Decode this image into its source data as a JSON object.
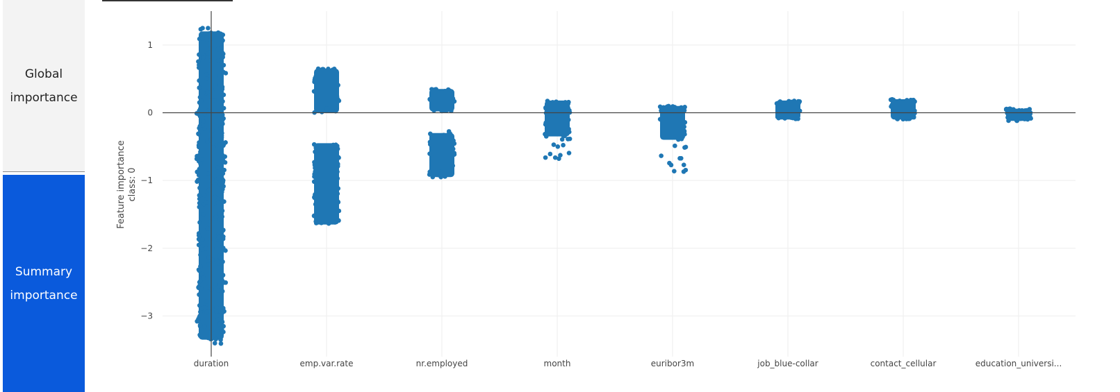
{
  "nav": {
    "tabs": [
      {
        "label": "Global importance",
        "selected": false
      },
      {
        "label": "Summary importance",
        "selected": true
      }
    ]
  },
  "colors": {
    "point": "#1f77b4",
    "grid": "#eeeeee",
    "zeroline": "#444444",
    "tab_selected": "#0a5adc",
    "tab_unselected": "#f3f3f3"
  },
  "chart_data": {
    "type": "scatter",
    "title": "",
    "xlabel": "",
    "ylabel": "Feature importance",
    "ylabel2": "class:  0",
    "ylim": [
      -3.6,
      1.5
    ],
    "yticks": [
      1,
      0,
      -1,
      -2,
      -3
    ],
    "ytick_labels": [
      "1",
      "0",
      "−1",
      "−2",
      "−3"
    ],
    "grid": true,
    "categories": [
      "duration",
      "emp.var.rate",
      "nr.employed",
      "month",
      "euribor3m",
      "job_blue-collar",
      "contact_cellular",
      "education_universi..."
    ],
    "clusters": [
      {
        "feature": "duration",
        "dense_range": [
          -3.35,
          1.2
        ],
        "sparse_outliers": [
          1.25,
          -3.38,
          -2.9,
          -2.2,
          -1.85
        ]
      },
      {
        "feature": "emp.var.rate",
        "dense_range": [
          0.0,
          0.65
        ],
        "dense_range_2": [
          -1.65,
          -0.45
        ],
        "sparse_outliers": [
          0.05,
          -1.62
        ]
      },
      {
        "feature": "nr.employed",
        "dense_range": [
          0.02,
          0.35
        ],
        "dense_range_2": [
          -0.95,
          -0.3
        ],
        "sparse_outliers": [
          -0.3,
          -0.9
        ]
      },
      {
        "feature": "month",
        "dense_range": [
          -0.35,
          0.18
        ],
        "sparse_outliers": [
          -0.4,
          -0.5,
          -0.6,
          -0.68
        ]
      },
      {
        "feature": "euribor3m",
        "dense_range": [
          -0.4,
          0.1
        ],
        "sparse_outliers": [
          -0.5,
          -0.65,
          -0.75,
          -0.85
        ]
      },
      {
        "feature": "job_blue-collar",
        "dense_range": [
          -0.1,
          0.18
        ],
        "sparse_outliers": []
      },
      {
        "feature": "contact_cellular",
        "dense_range": [
          -0.1,
          0.2
        ],
        "sparse_outliers": []
      },
      {
        "feature": "education_universi...",
        "dense_range": [
          -0.12,
          0.06
        ],
        "sparse_outliers": []
      }
    ]
  }
}
